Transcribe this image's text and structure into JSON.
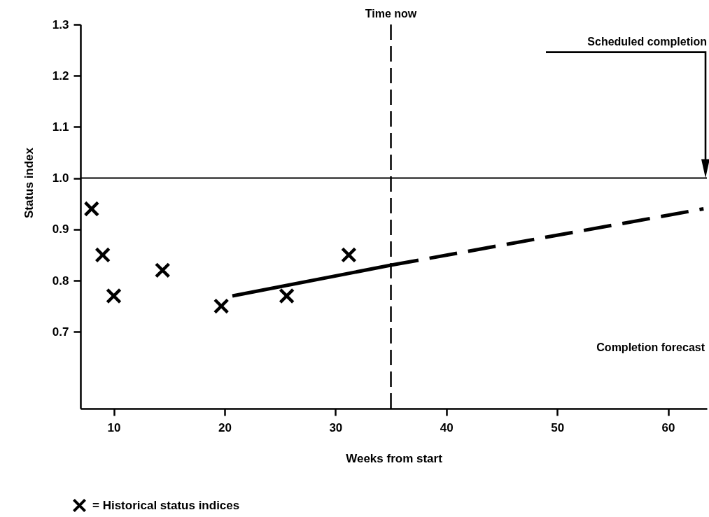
{
  "chart_data": {
    "type": "scatter",
    "xlabel": "Weeks from start",
    "ylabel": "Status index",
    "xlim": [
      7,
      63.5
    ],
    "ylim": [
      0.55,
      1.3
    ],
    "xticks": [
      10,
      20,
      30,
      40,
      50,
      60
    ],
    "yticks": [
      0.7,
      0.8,
      0.9,
      {
        "value": 1.0,
        "label": "1.0"
      },
      1.1,
      1.2,
      1.3
    ],
    "grid": false,
    "legend": "bottom left",
    "series": [
      {
        "name": "= Historical status indices",
        "marker": "cross",
        "color": "#000000",
        "x": [
          8,
          9,
          10,
          14.4,
          19.7,
          25.6,
          31.2
        ],
        "values": [
          0.94,
          0.85,
          0.77,
          0.82,
          0.75,
          0.77,
          0.85
        ]
      },
      {
        "type": "line",
        "line_style": "solid",
        "color": "#000000",
        "x": [
          20.7,
          35
        ],
        "values": [
          0.77,
          0.83
        ]
      },
      {
        "type": "line",
        "line_style": "dashed",
        "color": "#000000",
        "x": [
          35,
          63.2
        ],
        "values": [
          0.83,
          0.94
        ]
      }
    ],
    "ref_lines": [
      {
        "axis": "x",
        "value": 35,
        "label": "Time now",
        "line_style": "dashed",
        "color": "#000000"
      },
      {
        "axis": "y",
        "value": 1.0,
        "line_style": "solid",
        "color": "#000000"
      }
    ],
    "annotations": [
      "Scheduled completion",
      "Completion forecast"
    ]
  }
}
